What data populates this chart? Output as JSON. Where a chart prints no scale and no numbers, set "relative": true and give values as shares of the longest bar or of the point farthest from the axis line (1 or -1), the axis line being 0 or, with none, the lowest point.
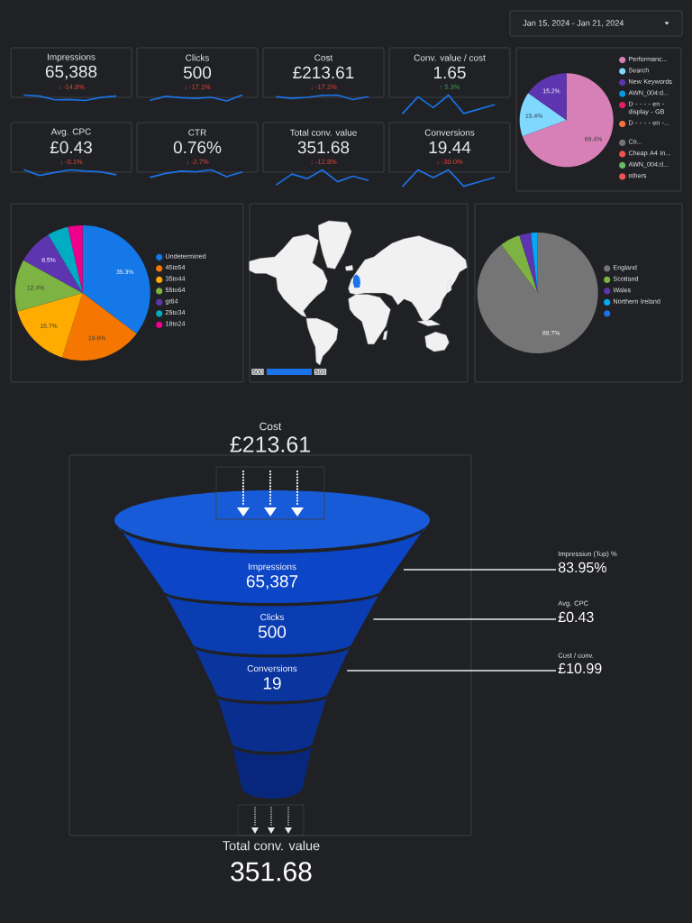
{
  "chart_data": [
    {
      "type": "other",
      "title": "Jan 15, 2024 - Jan 21, 2024"
    },
    {
      "type": "line",
      "relative": true,
      "title": "Impressions",
      "subtitle": "65,388",
      "annotations": [
        "↓ -14.8%"
      ],
      "categories": [
        null,
        null,
        null,
        null,
        null,
        null,
        null
      ],
      "values": [
        1.0,
        0.81,
        0.12,
        0.19,
        0,
        0.56,
        0.81
      ],
      "color": "#1a73e8"
    },
    {
      "type": "line",
      "relative": true,
      "title": "Clicks",
      "subtitle": "500",
      "annotations": [
        "↓ -17.1%"
      ],
      "categories": [
        null,
        null,
        null,
        null,
        null,
        null,
        null
      ],
      "values": [
        0.11,
        0.78,
        0.56,
        0.44,
        0.61,
        0,
        1.0
      ],
      "color": "#1a73e8"
    },
    {
      "type": "line",
      "relative": true,
      "title": "Cost",
      "subtitle": "£213.61",
      "annotations": [
        "↓ -17.2%"
      ],
      "categories": [
        null,
        null,
        null,
        null,
        null,
        null,
        null
      ],
      "values": [
        0.64,
        0.29,
        0.5,
        0.93,
        1.0,
        0,
        0.64
      ],
      "color": "#1a73e8"
    },
    {
      "type": "line",
      "relative": true,
      "title": "Conv. value / cost",
      "subtitle": "1.65",
      "annotations": [
        "↑ 5.3%"
      ],
      "categories": [
        null,
        null,
        null,
        null,
        null,
        null,
        null
      ],
      "values": [
        0,
        0.91,
        0.32,
        1.0,
        0,
        0.23,
        0.47
      ],
      "color": "#1a73e8"
    },
    {
      "type": "pie",
      "categories": [
        "Performanc...",
        "Search",
        "New Keywords",
        "AWN_004:d...",
        "D - - - - en - display - GB",
        "D - - - - en -...",
        "Co...",
        "Cheap A4 In...",
        "AWN_004:d...",
        "others"
      ],
      "values": [
        69.4,
        15.4,
        15.2,
        0,
        0,
        0,
        0,
        0,
        0,
        0
      ],
      "value_labels": [
        "69.4%",
        "15.4%",
        "15.2%",
        null,
        null,
        null,
        null,
        null,
        null,
        null
      ],
      "colors": [
        "#d77fb7",
        "#80d8ff",
        "#5e35b1",
        "#039be5",
        "#e91e63",
        "#ff7043",
        "#757575",
        "#ef5350",
        "#66bb6a",
        "#ef5350"
      ],
      "legend": "right"
    },
    {
      "type": "line",
      "relative": true,
      "title": "Avg. CPC",
      "subtitle": "£0.43",
      "annotations": [
        "↓ -0.1%"
      ],
      "categories": [
        null,
        null,
        null,
        null,
        null,
        null,
        null
      ],
      "values": [
        1.0,
        0,
        0.53,
        1.0,
        0.76,
        0.65,
        0.12
      ],
      "color": "#1a73e8"
    },
    {
      "type": "line",
      "relative": true,
      "title": "CTR",
      "subtitle": "0.76%",
      "annotations": [
        "↓ -2.7%"
      ],
      "categories": [
        null,
        null,
        null,
        null,
        null,
        null,
        null
      ],
      "values": [
        0,
        0.52,
        0.83,
        0.74,
        1.0,
        0.09,
        0.7
      ],
      "color": "#1a73e8"
    },
    {
      "type": "line",
      "relative": true,
      "title": "Total conv. value",
      "subtitle": "351.68",
      "annotations": [
        "↓ -12.8%"
      ],
      "categories": [
        null,
        null,
        null,
        null,
        null,
        null,
        null
      ],
      "values": [
        0,
        0.72,
        0.41,
        1.0,
        0.2,
        0.57,
        0.3
      ],
      "color": "#1a73e8"
    },
    {
      "type": "line",
      "relative": true,
      "title": "Conversions",
      "subtitle": "19.44",
      "annotations": [
        "↓ -30.0%"
      ],
      "categories": [
        null,
        null,
        null,
        null,
        null,
        null,
        null
      ],
      "values": [
        0,
        1.0,
        0.53,
        1.0,
        0,
        0.27,
        0.53
      ],
      "color": "#1a73e8"
    },
    {
      "type": "pie",
      "categories": [
        "Undetermined",
        "45to54",
        "35to44",
        "55to64",
        "gt64",
        "25to34",
        "18to24"
      ],
      "values": [
        35.3,
        19.6,
        15.7,
        12.4,
        8.5,
        5.0,
        3.5
      ],
      "value_labels": [
        "35.3%",
        "19.6%",
        "15.7%",
        "12.4%",
        "8.5%",
        null,
        null
      ],
      "colors": [
        "#1478e8",
        "#f57600",
        "#ffab00",
        "#7cb342",
        "#5e35b1",
        "#00acc1",
        "#ec008c"
      ],
      "legend": "right"
    },
    {
      "type": "other",
      "annotations": [
        "500",
        "500"
      ],
      "color": "#1a73e8"
    },
    {
      "type": "pie",
      "categories": [
        "England",
        "Scotland",
        "Wales",
        "Northern Ireland",
        null
      ],
      "values": [
        89.7,
        5.4,
        3.1,
        1.8,
        0
      ],
      "value_labels": [
        "89.7%",
        null,
        null,
        null,
        null
      ],
      "colors": [
        "#757575",
        "#7cb342",
        "#5e35b1",
        "#03a9f4",
        "#1a73e8"
      ],
      "legend": "right"
    },
    {
      "type": "other",
      "title": "Cost",
      "subtitle": "£213.61",
      "categories": [
        "Impressions",
        "Clicks",
        "Conversions",
        null,
        null
      ],
      "values": [
        65387,
        500,
        19,
        null,
        null
      ],
      "value_labels": [
        "65,387",
        "500",
        "19",
        null,
        null
      ],
      "colors": [
        "#0c45c6",
        "#0b3db2",
        "#0a359f",
        "#092e8d",
        "#08277c"
      ],
      "annotations": [
        "Impression (Top) %",
        "83.95%",
        "Avg. CPC",
        "£0.43",
        "Cost / conv.",
        "£10.99",
        "Total conv. value",
        "351.68"
      ]
    }
  ]
}
